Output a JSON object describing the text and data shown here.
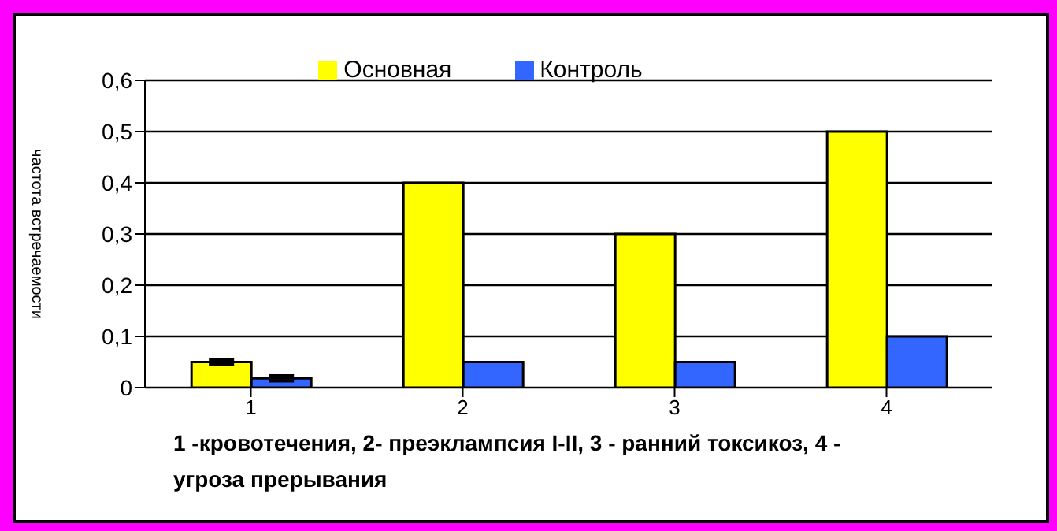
{
  "chart_data": {
    "type": "bar",
    "ylabel": "частота встречаемости",
    "categories": [
      "1",
      "2",
      "3",
      "4"
    ],
    "series": [
      {
        "name": "Основная",
        "color": "#ffff00",
        "values": [
          0.05,
          0.4,
          0.3,
          0.5
        ],
        "errors": [
          0.005,
          null,
          null,
          null
        ]
      },
      {
        "name": "Контроль",
        "color": "#3366ff",
        "values": [
          0.018,
          0.05,
          0.05,
          0.1
        ],
        "errors": [
          0.005,
          null,
          null,
          null
        ]
      }
    ],
    "ylim": [
      0,
      0.6
    ],
    "yticks": [
      0,
      {
        "value": 0.1,
        "label": "0,1"
      },
      {
        "value": 0.2,
        "label": "0,2"
      },
      {
        "value": 0.3,
        "label": "0,3"
      },
      {
        "value": 0.4,
        "label": "0,4"
      },
      {
        "value": 0.5,
        "label": "0,5"
      },
      {
        "value": 0.6,
        "label": "0,6"
      }
    ],
    "grid": "y",
    "legend": "top",
    "annotations": [
      "1 -кровотечения, 2- преэклампсия I-II, 3 - ранний токсикоз, 4 - угроза прерывания"
    ]
  }
}
